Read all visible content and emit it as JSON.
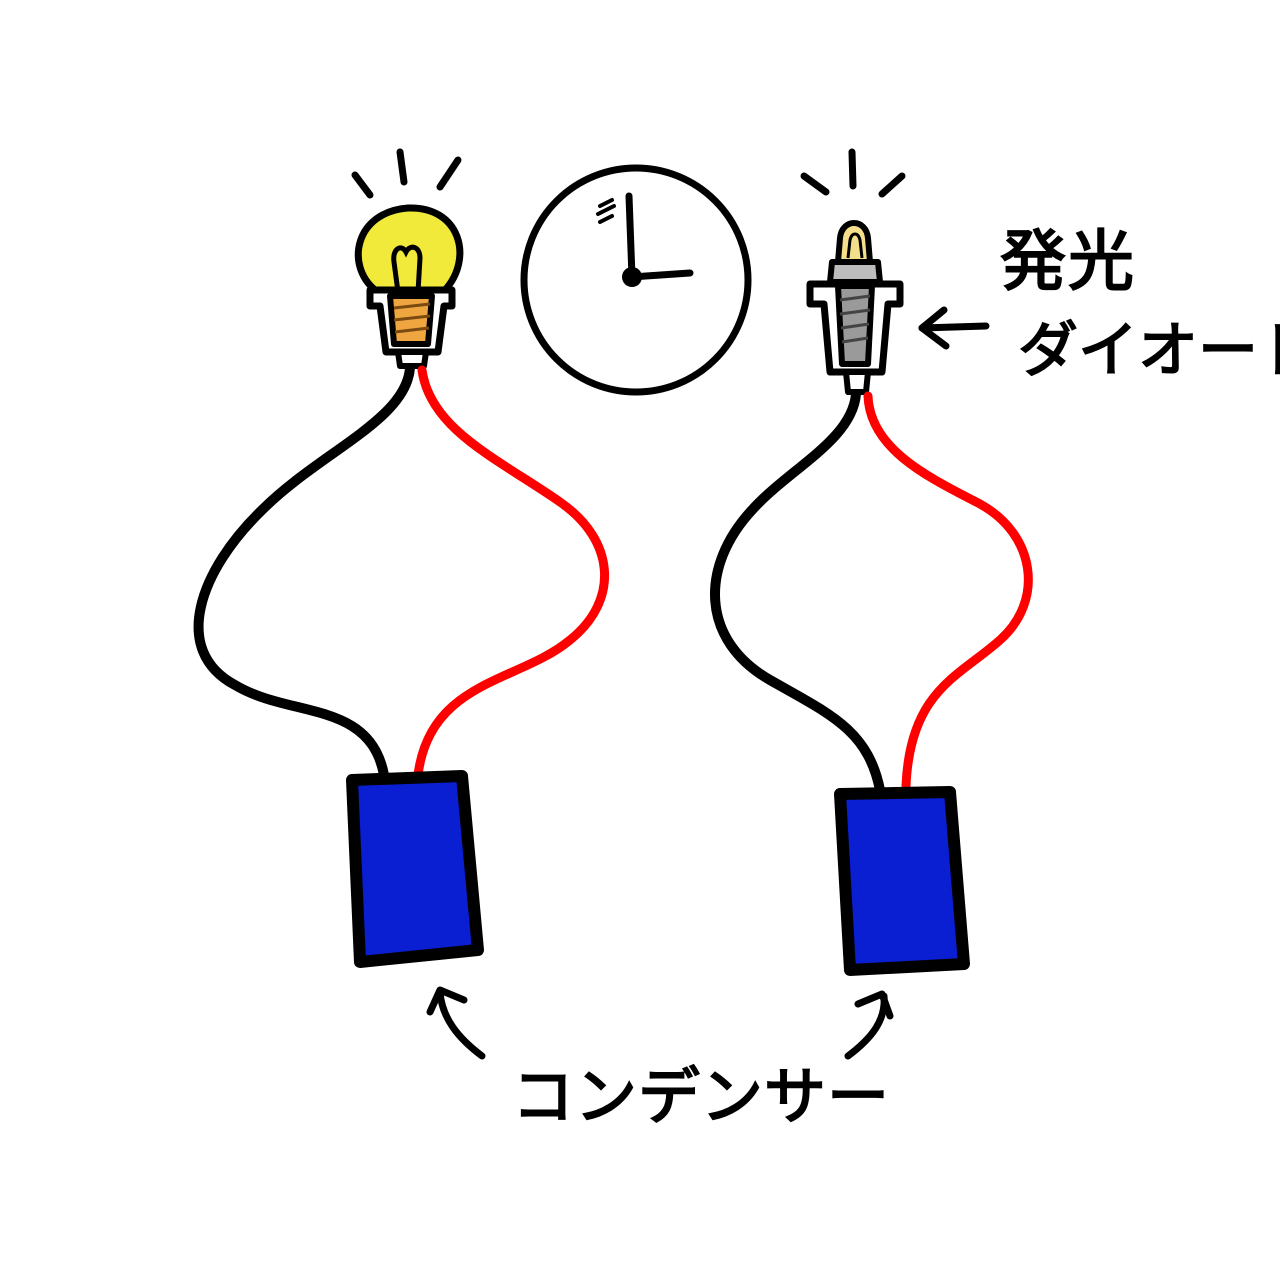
{
  "labels": {
    "led_line1": "発光",
    "led_line2": "ダイオード",
    "capacitor": "コンデンサー"
  },
  "colors": {
    "outline": "#000000",
    "wire_negative": "#000000",
    "wire_positive": "#ff0000",
    "capacitor_fill": "#0a1ed2",
    "bulb_glass": "#f2ea3a",
    "bulb_filament_base": "#f0a640",
    "led_body": "#9a9a9a",
    "led_light": "#f5df8a",
    "background": "#ffffff"
  },
  "icons": {
    "bulb": "light-bulb-icon",
    "led": "led-icon",
    "clock": "clock-icon",
    "capacitor": "capacitor-icon",
    "arrow": "arrow-icon"
  }
}
